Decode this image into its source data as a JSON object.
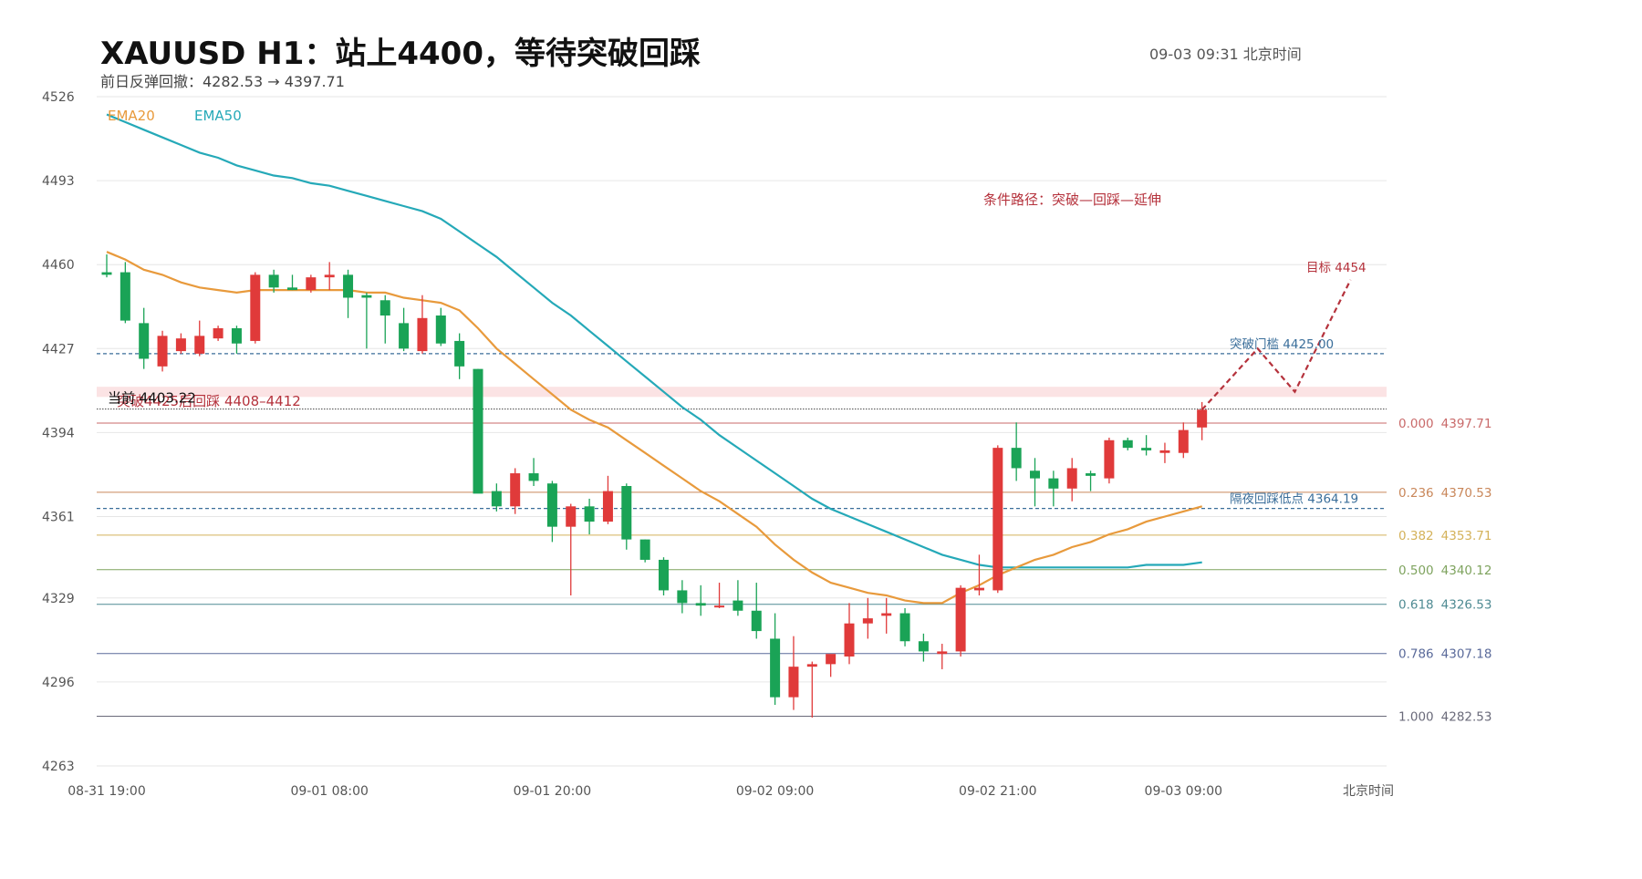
{
  "header": {
    "title": "XAUUSD  H1：站上4400，等待突破回踩",
    "subtitle": "前日反弹回撤：4282.53 → 4397.71",
    "timestamp": "09-03  09:31 北京时间"
  },
  "colors": {
    "up": "#e03a3a",
    "down": "#1aa356",
    "ema20": "#e89a3c",
    "ema50": "#25a9b8",
    "grid": "#e6e6e6",
    "dashed_level": "#3a6e9a",
    "path": "#b5323c",
    "zone": "#fbe3e4"
  },
  "chart_data": {
    "type": "candlestick",
    "symbol": "XAUUSD",
    "timeframe": "H1",
    "ylim": [
      4263,
      4526
    ],
    "y_ticks": [
      4526,
      4493,
      4460,
      4427,
      4394,
      4361,
      4329,
      4296,
      4263
    ],
    "x_ticks": [
      {
        "index": 0,
        "label": "08-31 19:00"
      },
      {
        "index": 12,
        "label": "09-01 08:00"
      },
      {
        "index": 24,
        "label": "09-01 20:00"
      },
      {
        "index": 36,
        "label": "09-02 09:00"
      },
      {
        "index": 48,
        "label": "09-02 21:00"
      },
      {
        "index": 58,
        "label": "09-03 09:00"
      }
    ],
    "x_axis_suffix": "北京时间",
    "candles": [
      {
        "o": 4457,
        "h": 4464,
        "l": 4455,
        "c": 4456
      },
      {
        "o": 4457,
        "h": 4461,
        "l": 4437,
        "c": 4438
      },
      {
        "o": 4437,
        "h": 4443,
        "l": 4419,
        "c": 4423
      },
      {
        "o": 4420,
        "h": 4434,
        "l": 4418,
        "c": 4432
      },
      {
        "o": 4426,
        "h": 4433,
        "l": 4425,
        "c": 4431
      },
      {
        "o": 4425,
        "h": 4438,
        "l": 4424,
        "c": 4432
      },
      {
        "o": 4431,
        "h": 4436,
        "l": 4430,
        "c": 4435
      },
      {
        "o": 4435,
        "h": 4436,
        "l": 4425,
        "c": 4429
      },
      {
        "o": 4430,
        "h": 4457,
        "l": 4429,
        "c": 4456
      },
      {
        "o": 4456,
        "h": 4458,
        "l": 4449,
        "c": 4451
      },
      {
        "o": 4451,
        "h": 4456,
        "l": 4450,
        "c": 4450
      },
      {
        "o": 4450,
        "h": 4456,
        "l": 4449,
        "c": 4455
      },
      {
        "o": 4455,
        "h": 4461,
        "l": 4450,
        "c": 4456
      },
      {
        "o": 4456,
        "h": 4458,
        "l": 4439,
        "c": 4447
      },
      {
        "o": 4448,
        "h": 4449,
        "l": 4427,
        "c": 4447
      },
      {
        "o": 4446,
        "h": 4448,
        "l": 4429,
        "c": 4440
      },
      {
        "o": 4437,
        "h": 4443,
        "l": 4426,
        "c": 4427
      },
      {
        "o": 4426,
        "h": 4448,
        "l": 4425,
        "c": 4439
      },
      {
        "o": 4440,
        "h": 4443,
        "l": 4428,
        "c": 4429
      },
      {
        "o": 4430,
        "h": 4433,
        "l": 4415,
        "c": 4420
      },
      {
        "o": 4419,
        "h": 4419,
        "l": 4371,
        "c": 4370
      },
      {
        "o": 4371,
        "h": 4374,
        "l": 4363,
        "c": 4365
      },
      {
        "o": 4365,
        "h": 4380,
        "l": 4362,
        "c": 4378
      },
      {
        "o": 4378,
        "h": 4384,
        "l": 4373,
        "c": 4375
      },
      {
        "o": 4374,
        "h": 4375,
        "l": 4351,
        "c": 4357
      },
      {
        "o": 4357,
        "h": 4366,
        "l": 4330,
        "c": 4365
      },
      {
        "o": 4365,
        "h": 4368,
        "l": 4354,
        "c": 4359
      },
      {
        "o": 4359,
        "h": 4377,
        "l": 4358,
        "c": 4371
      },
      {
        "o": 4373,
        "h": 4374,
        "l": 4348,
        "c": 4352
      },
      {
        "o": 4352,
        "h": 4352,
        "l": 4343,
        "c": 4344
      },
      {
        "o": 4344,
        "h": 4345,
        "l": 4330,
        "c": 4332
      },
      {
        "o": 4332,
        "h": 4336,
        "l": 4323,
        "c": 4327
      },
      {
        "o": 4327,
        "h": 4334,
        "l": 4322,
        "c": 4326
      },
      {
        "o": 4326,
        "h": 4335,
        "l": 4325,
        "c": 4326
      },
      {
        "o": 4328,
        "h": 4336,
        "l": 4322,
        "c": 4324
      },
      {
        "o": 4324,
        "h": 4335,
        "l": 4313,
        "c": 4316
      },
      {
        "o": 4313,
        "h": 4323,
        "l": 4287,
        "c": 4290
      },
      {
        "o": 4290,
        "h": 4314,
        "l": 4285,
        "c": 4302
      },
      {
        "o": 4302,
        "h": 4304,
        "l": 4282,
        "c": 4303
      },
      {
        "o": 4303,
        "h": 4305,
        "l": 4298,
        "c": 4307
      },
      {
        "o": 4306,
        "h": 4327,
        "l": 4303,
        "c": 4319
      },
      {
        "o": 4319,
        "h": 4329,
        "l": 4313,
        "c": 4321
      },
      {
        "o": 4322,
        "h": 4329,
        "l": 4315,
        "c": 4323
      },
      {
        "o": 4323,
        "h": 4325,
        "l": 4310,
        "c": 4312
      },
      {
        "o": 4312,
        "h": 4315,
        "l": 4304,
        "c": 4308
      },
      {
        "o": 4307,
        "h": 4311,
        "l": 4301,
        "c": 4308
      },
      {
        "o": 4308,
        "h": 4334,
        "l": 4306,
        "c": 4333
      },
      {
        "o": 4332,
        "h": 4346,
        "l": 4330,
        "c": 4333
      },
      {
        "o": 4332,
        "h": 4389,
        "l": 4331,
        "c": 4388
      },
      {
        "o": 4388,
        "h": 4398,
        "l": 4375,
        "c": 4380
      },
      {
        "o": 4379,
        "h": 4384,
        "l": 4365,
        "c": 4376
      },
      {
        "o": 4376,
        "h": 4379,
        "l": 4365,
        "c": 4372
      },
      {
        "o": 4372,
        "h": 4384,
        "l": 4367,
        "c": 4380
      },
      {
        "o": 4378,
        "h": 4379,
        "l": 4371,
        "c": 4377
      },
      {
        "o": 4376,
        "h": 4392,
        "l": 4374,
        "c": 4391
      },
      {
        "o": 4391,
        "h": 4392,
        "l": 4387,
        "c": 4388
      },
      {
        "o": 4388,
        "h": 4393,
        "l": 4385,
        "c": 4387
      },
      {
        "o": 4386,
        "h": 4390,
        "l": 4382,
        "c": 4387
      },
      {
        "o": 4386,
        "h": 4398,
        "l": 4384,
        "c": 4395
      },
      {
        "o": 4396,
        "h": 4406,
        "l": 4391,
        "c": 4403
      }
    ],
    "ema20": [
      4465,
      4462,
      4458,
      4456,
      4453,
      4451,
      4450,
      4449,
      4450,
      4450,
      4450,
      4450,
      4450,
      4450,
      4449,
      4449,
      4447,
      4446,
      4445,
      4442,
      4435,
      4427,
      4421,
      4415,
      4409,
      4403,
      4399,
      4396,
      4391,
      4386,
      4381,
      4376,
      4371,
      4367,
      4362,
      4357,
      4350,
      4344,
      4339,
      4335,
      4333,
      4331,
      4330,
      4328,
      4327,
      4327,
      4331,
      4334,
      4338,
      4341,
      4344,
      4346,
      4349,
      4351,
      4354,
      4356,
      4359,
      4361,
      4363,
      4365
    ],
    "ema50": [
      4519,
      4516,
      4513,
      4510,
      4507,
      4504,
      4502,
      4499,
      4497,
      4495,
      4494,
      4492,
      4491,
      4489,
      4487,
      4485,
      4483,
      4481,
      4478,
      4473,
      4468,
      4463,
      4457,
      4451,
      4445,
      4440,
      4434,
      4428,
      4422,
      4416,
      4410,
      4404,
      4399,
      4393,
      4388,
      4383,
      4378,
      4373,
      4368,
      4364,
      4361,
      4358,
      4355,
      4352,
      4349,
      4346,
      4344,
      4342,
      4341,
      4341,
      4341,
      4341,
      4341,
      4341,
      4341,
      4341,
      4342,
      4342,
      4342,
      4343
    ],
    "legend": [
      {
        "name": "EMA20",
        "color": "#e89a3c"
      },
      {
        "name": "EMA50",
        "color": "#25a9b8"
      }
    ],
    "fib_levels": [
      {
        "ratio": "0.000",
        "price": "4397.71",
        "value": 4397.71,
        "color": "#c96a6a"
      },
      {
        "ratio": "0.236",
        "price": "4370.53",
        "value": 4370.53,
        "color": "#c9875a"
      },
      {
        "ratio": "0.382",
        "price": "4353.71",
        "value": 4353.71,
        "color": "#d4b25a"
      },
      {
        "ratio": "0.500",
        "price": "4340.12",
        "value": 4340.12,
        "color": "#7ea35e"
      },
      {
        "ratio": "0.618",
        "price": "4326.53",
        "value": 4326.53,
        "color": "#4f8b93"
      },
      {
        "ratio": "0.786",
        "price": "4307.18",
        "value": 4307.18,
        "color": "#5a6a9a"
      },
      {
        "ratio": "1.000",
        "price": "4282.53",
        "value": 4282.53,
        "color": "#6a6a7a"
      }
    ],
    "levels": {
      "breakout": {
        "label": "突破门槛 4425.00",
        "value": 4425.0
      },
      "overnight_low": {
        "label": "隔夜回踩低点 4364.19",
        "value": 4364.19
      },
      "current": {
        "label": "当前 4403.22",
        "value": 4403.22
      }
    },
    "retest_zone": {
      "label": "突破4425后回踩  4408–4412",
      "low": 4408,
      "high": 4412
    },
    "path_label": "条件路径：突破—回踩—延伸",
    "target_label": "目标 4454",
    "projected_path": [
      {
        "i": 59,
        "v": 4403
      },
      {
        "i": 62,
        "v": 4427
      },
      {
        "i": 64,
        "v": 4410
      },
      {
        "i": 67,
        "v": 4454
      }
    ]
  }
}
